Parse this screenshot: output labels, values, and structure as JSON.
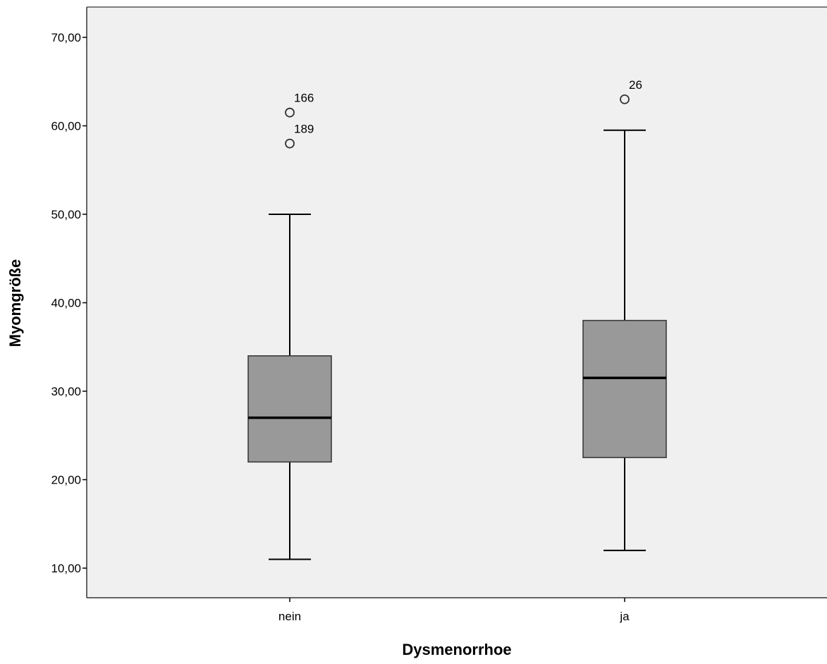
{
  "chart_data": {
    "type": "boxplot",
    "xlabel": "Dysmenorrhoe",
    "ylabel": "Myomgröße",
    "ylim": [
      6.6,
      73.4
    ],
    "yticks": [
      10,
      20,
      30,
      40,
      50,
      60,
      70
    ],
    "ytick_labels": [
      "10,00",
      "20,00",
      "30,00",
      "40,00",
      "50,00",
      "60,00",
      "70,00"
    ],
    "grid": false,
    "categories": [
      "nein",
      "ja"
    ],
    "boxes": [
      {
        "category": "nein",
        "whisker_low": 11,
        "q1": 22,
        "median": 27,
        "q3": 34,
        "whisker_high": 50,
        "outliers": [
          {
            "value": 61.5,
            "label": "166"
          },
          {
            "value": 58,
            "label": "189"
          }
        ]
      },
      {
        "category": "ja",
        "whisker_low": 12,
        "q1": 22.5,
        "median": 31.5,
        "q3": 38,
        "whisker_high": 59.5,
        "outliers": [
          {
            "value": 63,
            "label": "26"
          }
        ]
      }
    ],
    "colors": {
      "plot_background": "#f0f0f0",
      "box_fill": "#999999",
      "stroke": "#000000",
      "frame": "#555555"
    }
  }
}
